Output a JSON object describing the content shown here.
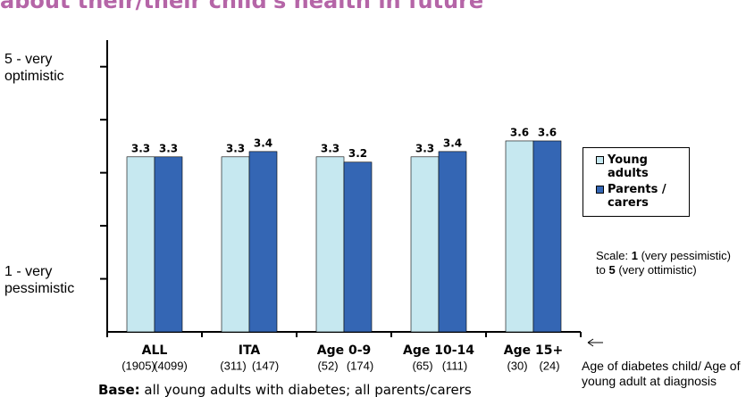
{
  "chart_data": {
    "type": "bar",
    "title": "about their/their child's health in future",
    "categories": [
      "ALL",
      "ITA",
      "Age 0-9",
      "Age 10-14",
      "Age 15+"
    ],
    "base_labels": [
      [
        "(1905)",
        "(4099)"
      ],
      [
        "(311)",
        "(147)"
      ],
      [
        "(52)",
        "(174)"
      ],
      [
        "(65)",
        "(111)"
      ],
      [
        "(30)",
        "(24)"
      ]
    ],
    "series": [
      {
        "name": "Young adults",
        "color": "#c6e8f0",
        "values": [
          3.3,
          3.3,
          3.3,
          3.3,
          3.6
        ]
      },
      {
        "name": "Parents / carers",
        "color": "#3466b4",
        "values": [
          3.3,
          3.4,
          3.2,
          3.4,
          3.6
        ]
      }
    ],
    "ylim": [
      0,
      5.5
    ],
    "yticks": [
      {
        "value": 1,
        "label": "1 - very pessimistic"
      },
      {
        "value": 2,
        "label": null
      },
      {
        "value": 3,
        "label": null
      },
      {
        "value": 4,
        "label": null
      },
      {
        "value": 5,
        "label": "5 - very optimistic"
      }
    ],
    "scale_note": [
      "Scale: ",
      "1",
      " (very pessimistic) to ",
      "5",
      " (very ottimistic)"
    ],
    "x_axis_note": "Age of diabetes child/ Age of young adult at diagnosis",
    "base_note": [
      "Base:",
      " all young adults with diabetes; all parents/carers"
    ]
  }
}
